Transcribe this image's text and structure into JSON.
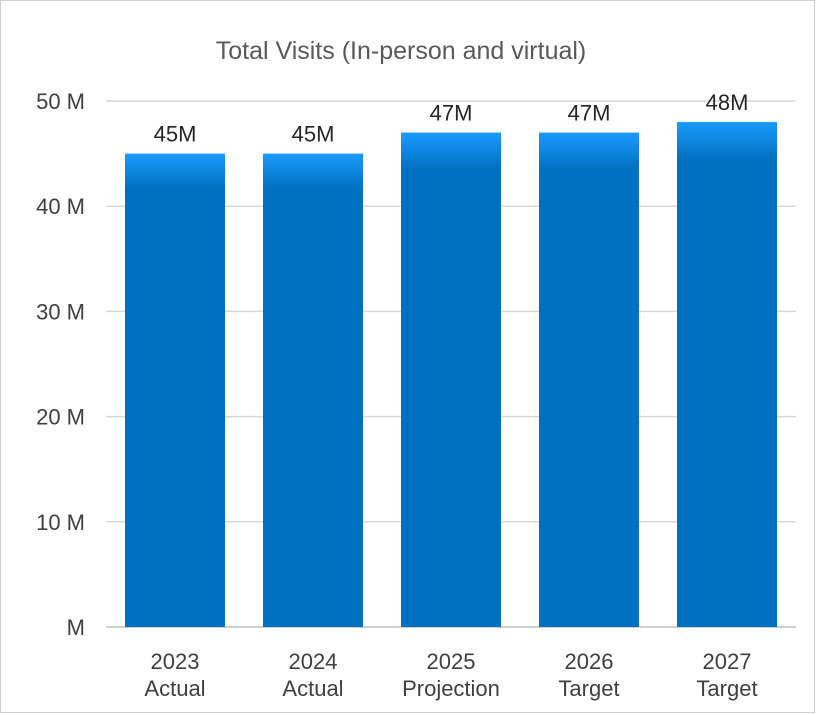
{
  "chart_data": {
    "type": "bar",
    "title": "Total Visits (In-person and virtual)",
    "xlabel": "",
    "ylabel": "",
    "categories": [
      [
        "2023",
        "Actual"
      ],
      [
        "2024",
        "Actual"
      ],
      [
        "2025",
        "Projection"
      ],
      [
        "2026",
        "Target"
      ],
      [
        "2027",
        "Target"
      ]
    ],
    "values": [
      45,
      45,
      47,
      47,
      48
    ],
    "data_labels": [
      "45M",
      "45M",
      "47M",
      "47M",
      "48M"
    ],
    "unit": "M",
    "ylim": [
      0,
      50
    ],
    "yticks": [
      0,
      10,
      20,
      30,
      40,
      50
    ],
    "ytick_labels": [
      "M",
      "10 M",
      "20 M",
      "30 M",
      "40 M",
      "50 M"
    ],
    "grid": true,
    "legend": "none",
    "colors": {
      "bar_top": "#1a9bff",
      "bar_body": "#0070c0",
      "grid": "#d9d9d9",
      "axis": "#bfbfbf"
    }
  }
}
